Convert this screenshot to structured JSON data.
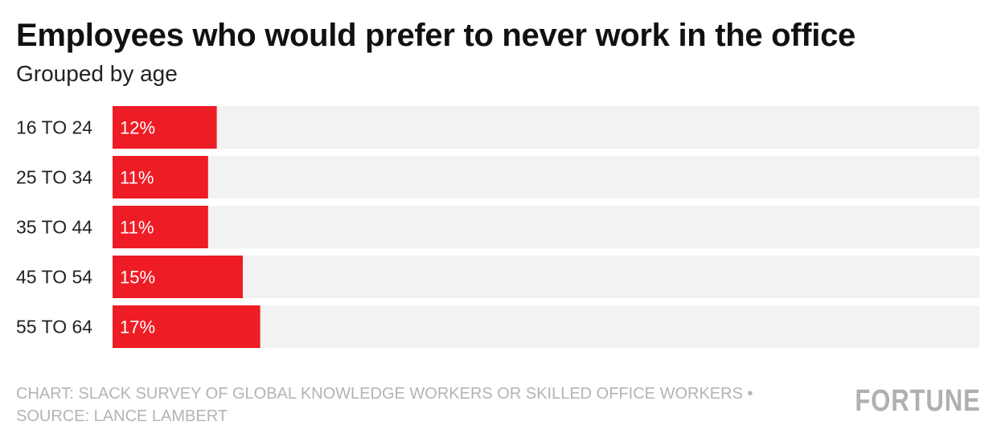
{
  "title": "Employees who would prefer to never work in the office",
  "subtitle": "Grouped by age",
  "chart_data": {
    "type": "bar",
    "orientation": "horizontal",
    "categories": [
      "16 TO 24",
      "25 TO 34",
      "35 TO 44",
      "45 TO 54",
      "55 TO 64"
    ],
    "values": [
      12,
      11,
      11,
      15,
      17
    ],
    "value_labels": [
      "12%",
      "11%",
      "11%",
      "15%",
      "17%"
    ],
    "unit": "%",
    "xlim": [
      0,
      100
    ],
    "grid": false,
    "bar_color": "#ee1c25",
    "track_color": "#f2f2f2"
  },
  "footer": {
    "line1": "CHART: SLACK SURVEY OF GLOBAL KNOWLEDGE WORKERS OR SKILLED OFFICE WORKERS •",
    "line2": "SOURCE: LANCE LAMBERT"
  },
  "logo": "FORTUNE"
}
